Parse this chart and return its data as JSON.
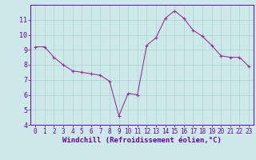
{
  "x": [
    0,
    1,
    2,
    3,
    4,
    5,
    6,
    7,
    8,
    9,
    10,
    11,
    12,
    13,
    14,
    15,
    16,
    17,
    18,
    19,
    20,
    21,
    22,
    23
  ],
  "y": [
    9.2,
    9.2,
    8.5,
    8.0,
    7.6,
    7.5,
    7.4,
    7.3,
    6.9,
    4.6,
    6.1,
    6.0,
    9.3,
    9.8,
    11.1,
    11.6,
    11.1,
    10.3,
    9.9,
    9.3,
    8.6,
    8.5,
    8.5,
    7.9
  ],
  "line_color": "#993399",
  "marker": "+",
  "marker_size": 3,
  "bg_color": "#cce8e8",
  "grid_color": "#b0d0d0",
  "xlabel": "Windchill (Refroidissement éolien,°C)",
  "xlabel_color": "#6600aa",
  "tick_color": "#6600aa",
  "ylim": [
    4,
    12
  ],
  "xlim": [
    -0.5,
    23.5
  ],
  "yticks": [
    4,
    5,
    6,
    7,
    8,
    9,
    10,
    11
  ],
  "xticks": [
    0,
    1,
    2,
    3,
    4,
    5,
    6,
    7,
    8,
    9,
    10,
    11,
    12,
    13,
    14,
    15,
    16,
    17,
    18,
    19,
    20,
    21,
    22,
    23
  ],
  "tick_fontsize": 5.5,
  "xlabel_fontsize": 6.5,
  "line_width": 0.8,
  "marker_edge_width": 0.8
}
